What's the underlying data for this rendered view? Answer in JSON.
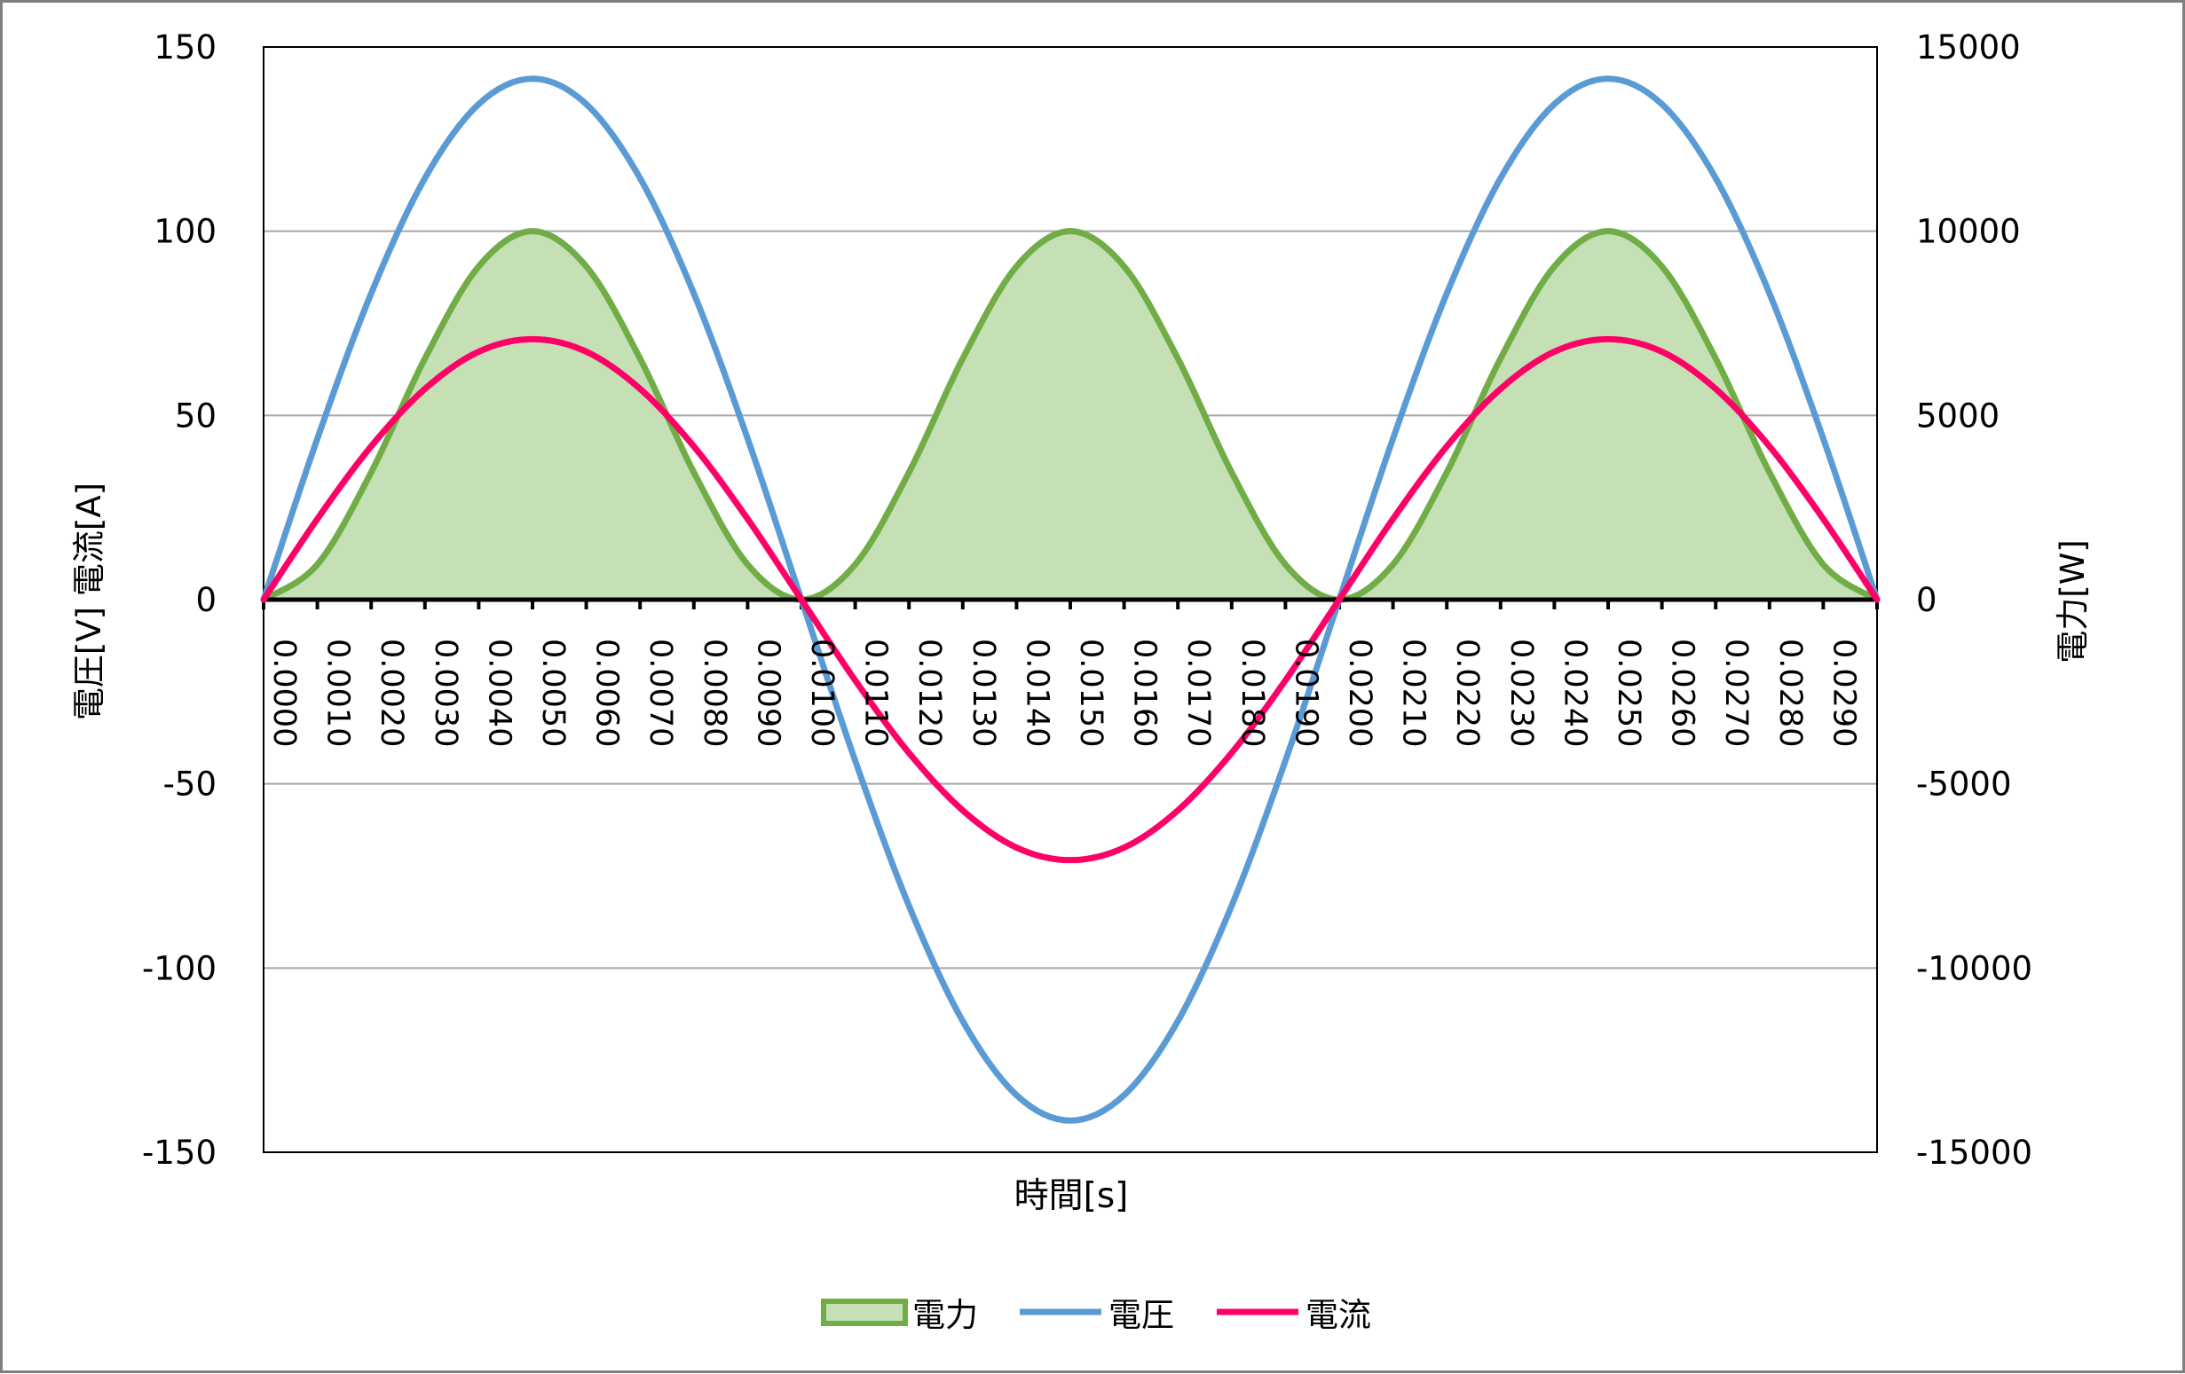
{
  "chart_data": {
    "type": "line",
    "title": "",
    "xlabel": "時間[s]",
    "ylabel_left": "電圧[V]  電流[A]",
    "ylabel_right": "電力[W]",
    "ylim_left": [
      -150,
      150
    ],
    "ylim_right": [
      -15000,
      15000
    ],
    "yticks_left": [
      "150",
      "100",
      "50",
      "0",
      "-50",
      "-100",
      "-150"
    ],
    "yticks_right": [
      "15000",
      "10000",
      "5000",
      "0",
      "-5000",
      "-10000",
      "-15000"
    ],
    "xrange": [
      0,
      0.03
    ],
    "categories": [
      "0.0000",
      "0.0010",
      "0.0020",
      "0.0030",
      "0.0040",
      "0.0050",
      "0.0060",
      "0.0070",
      "0.0080",
      "0.0090",
      "0.0100",
      "0.0110",
      "0.0120",
      "0.0130",
      "0.0140",
      "0.0150",
      "0.0160",
      "0.0170",
      "0.0180",
      "0.0190",
      "0.0200",
      "0.0210",
      "0.0220",
      "0.0230",
      "0.0240",
      "0.0250",
      "0.0260",
      "0.0270",
      "0.0280",
      "0.0290"
    ],
    "grid": true,
    "legend_position": "bottom",
    "series": [
      {
        "name": "電力",
        "kind": "area",
        "axis": "right",
        "color": "#70ad47",
        "fill": "#c5e0b4",
        "x": [
          0,
          0.001,
          0.002,
          0.003,
          0.004,
          0.005,
          0.006,
          0.007,
          0.008,
          0.009,
          0.01,
          0.011,
          0.012,
          0.013,
          0.014,
          0.015,
          0.016,
          0.017,
          0.018,
          0.019,
          0.02,
          0.021,
          0.022,
          0.023,
          0.024,
          0.025,
          0.026,
          0.027,
          0.028,
          0.029,
          0.03
        ],
        "values": [
          0,
          955,
          3455,
          6545,
          9045,
          10000,
          9045,
          6545,
          3455,
          955,
          0,
          955,
          3455,
          6545,
          9045,
          10000,
          9045,
          6545,
          3455,
          955,
          0,
          955,
          3455,
          6545,
          9045,
          10000,
          9045,
          6545,
          3455,
          955,
          0
        ]
      },
      {
        "name": "電圧",
        "kind": "line",
        "axis": "left",
        "color": "#5b9bd5",
        "x": [
          0,
          0.001,
          0.002,
          0.003,
          0.004,
          0.005,
          0.006,
          0.007,
          0.008,
          0.009,
          0.01,
          0.011,
          0.012,
          0.013,
          0.014,
          0.015,
          0.016,
          0.017,
          0.018,
          0.019,
          0.02,
          0.021,
          0.022,
          0.023,
          0.024,
          0.025,
          0.026,
          0.027,
          0.028,
          0.029,
          0.03
        ],
        "values": [
          0,
          43.7,
          83.1,
          114.4,
          134.5,
          141.4,
          134.5,
          114.4,
          83.1,
          43.7,
          0,
          -43.7,
          -83.1,
          -114.4,
          -134.5,
          -141.4,
          -134.5,
          -114.4,
          -83.1,
          -43.7,
          0,
          43.7,
          83.1,
          114.4,
          134.5,
          141.4,
          134.5,
          114.4,
          83.1,
          43.7,
          0
        ]
      },
      {
        "name": "電流",
        "kind": "line",
        "axis": "left",
        "color": "#ff0066",
        "x": [
          0,
          0.001,
          0.002,
          0.003,
          0.004,
          0.005,
          0.006,
          0.007,
          0.008,
          0.009,
          0.01,
          0.011,
          0.012,
          0.013,
          0.014,
          0.015,
          0.016,
          0.017,
          0.018,
          0.019,
          0.02,
          0.021,
          0.022,
          0.023,
          0.024,
          0.025,
          0.026,
          0.027,
          0.028,
          0.029,
          0.03
        ],
        "values": [
          0,
          21.9,
          41.6,
          57.2,
          67.3,
          70.7,
          67.3,
          57.2,
          41.6,
          21.9,
          0,
          -21.9,
          -41.6,
          -57.2,
          -67.3,
          -70.7,
          -67.3,
          -57.2,
          -41.6,
          -21.9,
          0,
          21.9,
          41.6,
          57.2,
          67.3,
          70.7,
          67.3,
          57.2,
          41.6,
          21.9,
          0
        ]
      }
    ]
  }
}
